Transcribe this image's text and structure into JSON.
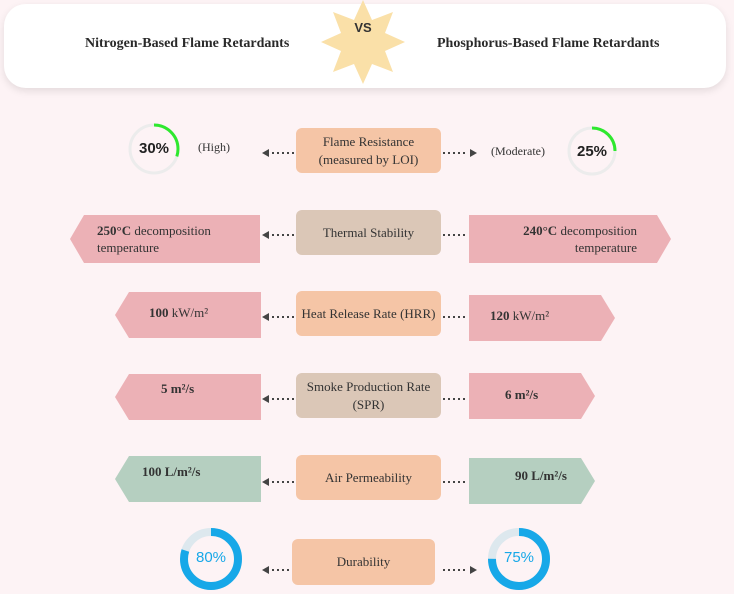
{
  "header": {
    "left_title": "Nitrogen-Based Flame Retardants",
    "vs": "VS",
    "right_title": "Phosphorus-Based Flame Retardants"
  },
  "rows": [
    {
      "label": "Flame Resistance (measured by LOI)",
      "left": {
        "percent": 30,
        "value_text": "30%",
        "note": "(High)"
      },
      "right": {
        "percent": 25,
        "value_text": "25%",
        "note": "(Moderate)"
      }
    },
    {
      "label": "Thermal Stability",
      "left": {
        "value": "250°C",
        "text": "decomposition temperature"
      },
      "right": {
        "value": "240°C",
        "text": "decomposition temperature"
      }
    },
    {
      "label": "Heat Release Rate (HRR)",
      "left": {
        "value": "100",
        "unit": "kW/m²"
      },
      "right": {
        "value": "120",
        "unit": "kW/m²"
      }
    },
    {
      "label": "Smoke Production Rate (SPR)",
      "left": {
        "value": "5 m²/s"
      },
      "right": {
        "value": "6 m²/s"
      }
    },
    {
      "label": "Air Permeability",
      "left": {
        "value": "100 L/m²/s"
      },
      "right": {
        "value": "90 L/m²/s"
      }
    },
    {
      "label": "Durability",
      "left": {
        "percent": 80,
        "value_text": "80%"
      },
      "right": {
        "percent": 75,
        "value_text": "75%"
      }
    }
  ],
  "colors": {
    "peach": "#f5c5a6",
    "tan": "#dbc7b7",
    "pink": "#ecb1b6",
    "sage": "#b5cfc0",
    "green_ring": "#2ee82e",
    "blue_ring": "#17a8e8",
    "star": "#fae0a8"
  }
}
